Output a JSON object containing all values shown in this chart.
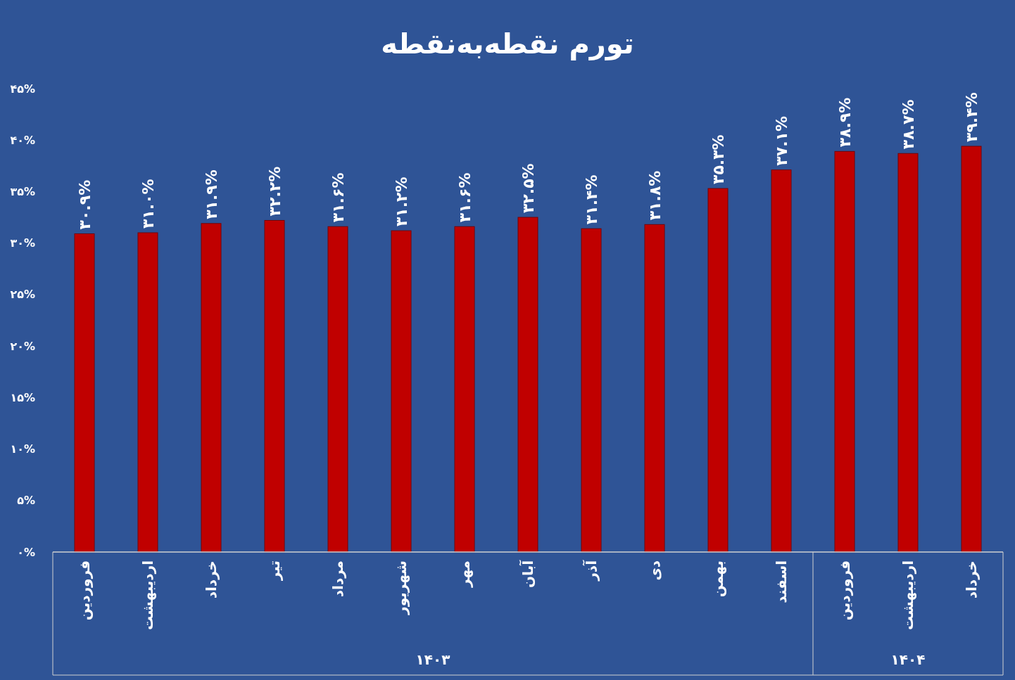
{
  "chart_data": {
    "type": "bar",
    "title": "تورم نقطه‌به‌نقطه",
    "categories": [
      "فروردین",
      "اردیبهشت",
      "خرداد",
      "تیر",
      "مرداد",
      "شهریور",
      "مهر",
      "آبان",
      "آذر",
      "دی",
      "بهمن",
      "اسفند",
      "فروردین",
      "اردیبهشت",
      "خرداد"
    ],
    "values": [
      30.9,
      31.0,
      31.9,
      32.2,
      31.6,
      31.2,
      31.6,
      32.5,
      31.4,
      31.8,
      35.3,
      37.1,
      38.9,
      38.7,
      39.4
    ],
    "value_labels": [
      "۳۰.۹%",
      "۳۱.۰%",
      "۳۱.۹%",
      "۳۲.۲%",
      "۳۱.۶%",
      "۳۱.۲%",
      "۳۱.۶%",
      "۳۲.۵%",
      "۳۱.۴%",
      "۳۱.۸%",
      "۳۵.۳%",
      "۳۷.۱%",
      "۳۸.۹%",
      "۳۸.۷%",
      "۳۹.۴%"
    ],
    "color": "#c00000",
    "ylim": [
      0,
      45
    ],
    "yticks": [
      {
        "value": 0,
        "label": "۰%"
      },
      {
        "value": 5,
        "label": "۵%"
      },
      {
        "value": 10,
        "label": "۱۰%"
      },
      {
        "value": 15,
        "label": "۱۵%"
      },
      {
        "value": 20,
        "label": "۲۰%"
      },
      {
        "value": 25,
        "label": "۲۵%"
      },
      {
        "value": 30,
        "label": "۳۰%"
      },
      {
        "value": 35,
        "label": "۳۵%"
      },
      {
        "value": 40,
        "label": "۴۰%"
      },
      {
        "value": 45,
        "label": "۴۵%"
      }
    ],
    "annotations": [
      "۱۴۰۳",
      "۱۴۰۴"
    ]
  }
}
